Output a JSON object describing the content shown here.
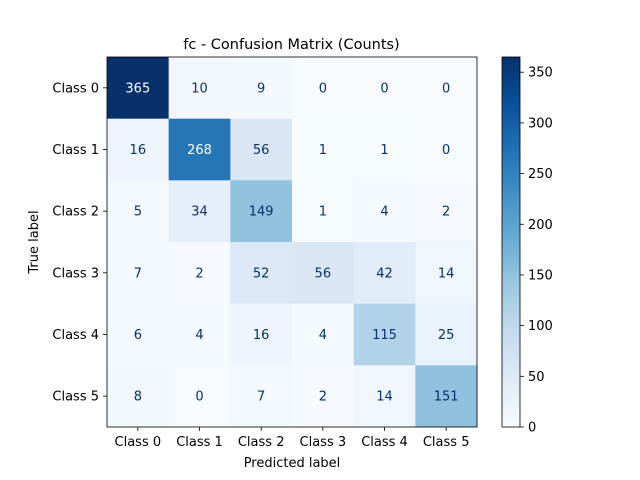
{
  "chart_data": {
    "type": "heatmap",
    "title": "fc - Confusion Matrix (Counts)",
    "xlabel": "Predicted label",
    "ylabel": "True label",
    "x_categories": [
      "Class 0",
      "Class 1",
      "Class 2",
      "Class 3",
      "Class 4",
      "Class 5"
    ],
    "y_categories": [
      "Class 0",
      "Class 1",
      "Class 2",
      "Class 3",
      "Class 4",
      "Class 5"
    ],
    "values": [
      [
        365,
        10,
        9,
        0,
        0,
        0
      ],
      [
        16,
        268,
        56,
        1,
        1,
        0
      ],
      [
        5,
        34,
        149,
        1,
        4,
        2
      ],
      [
        7,
        2,
        52,
        56,
        42,
        14
      ],
      [
        6,
        4,
        16,
        4,
        115,
        25
      ],
      [
        8,
        0,
        7,
        2,
        14,
        151
      ]
    ],
    "colormap": "Blues",
    "color_range": [
      0,
      365
    ],
    "colorbar_ticks": [
      0,
      50,
      100,
      150,
      200,
      250,
      300,
      350
    ],
    "text_colors": {
      "light": "#ffffff",
      "dark": "#08306b"
    }
  }
}
